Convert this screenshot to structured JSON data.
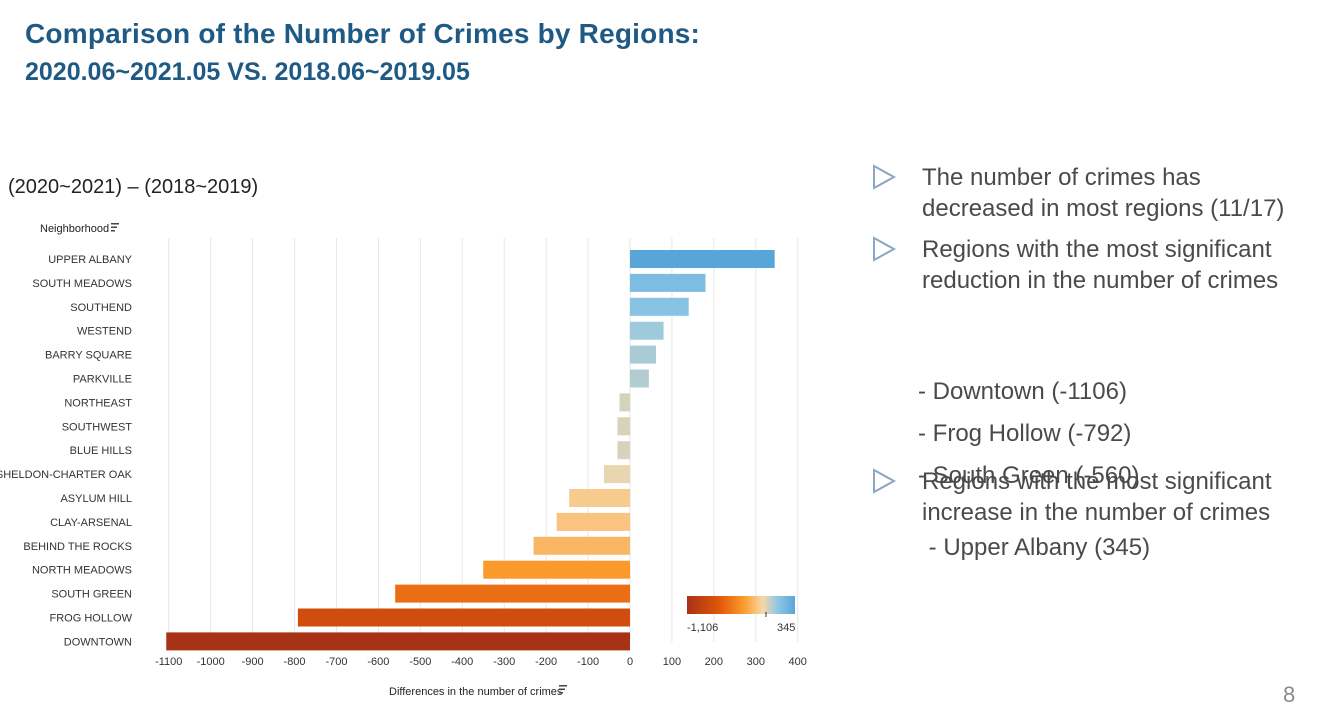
{
  "slide": {
    "title": "Comparison of the Number of Crimes by Regions:",
    "subtitle": "2020.06~2021.05 VS. 2018.06~2019.05",
    "page_number": "8"
  },
  "chart_data": {
    "type": "bar",
    "orientation": "horizontal",
    "title": "(2020~2021) – (2018~2019)",
    "ylabel": "Neighborhood",
    "xlabel": "Differences in the number of crimes",
    "categories": [
      "UPPER ALBANY",
      "SOUTH MEADOWS",
      "SOUTHEND",
      "WESTEND",
      "BARRY SQUARE",
      "PARKVILLE",
      "NORTHEAST",
      "SOUTHWEST",
      "BLUE HILLS",
      "SHELDON-CHARTER OAK",
      "ASYLUM HILL",
      "CLAY-ARSENAL",
      "BEHIND THE ROCKS",
      "NORTH MEADOWS",
      "SOUTH GREEN",
      "FROG HOLLOW",
      "DOWNTOWN"
    ],
    "values": [
      345,
      180,
      140,
      80,
      62,
      45,
      -25,
      -30,
      -30,
      -62,
      -145,
      -175,
      -230,
      -350,
      -560,
      -792,
      -1106
    ],
    "xlim": [
      -1150,
      420
    ],
    "xticks": [
      -1100,
      -1000,
      -900,
      -800,
      -700,
      -600,
      -500,
      -400,
      -300,
      -200,
      -100,
      0,
      100,
      200,
      300,
      400
    ],
    "grid": "vertical",
    "color_legend": {
      "min": -1106,
      "max": 345,
      "min_label": "-1,106",
      "max_label": "345",
      "colors": [
        "#a83215",
        "#e0570a",
        "#fb9a2a",
        "#f6d8a8",
        "#8ec7e6",
        "#58a5d8"
      ]
    }
  },
  "bullets": [
    {
      "icon": "triangle-right-icon",
      "lines": [
        "The number of crimes has",
        "decreased in most regions (11/17)"
      ]
    },
    {
      "icon": "triangle-right-icon",
      "lines": [
        "Regions with the most significant",
        "reduction in the number of crimes"
      ],
      "subitems": [
        "- Downtown (-1106)",
        "- Frog Hollow (-792)",
        "- South Green (-560)"
      ]
    },
    {
      "icon": "triangle-right-icon",
      "lines": [
        "Regions with the most significant",
        "increase in the number of crimes"
      ],
      "subitems": [
        " - Upper Albany (345)"
      ]
    }
  ]
}
